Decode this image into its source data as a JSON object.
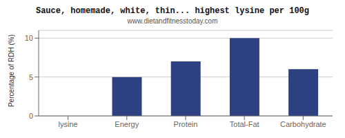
{
  "chart_data": {
    "type": "bar",
    "title": "Sauce, homemade, white, thin... highest lysine per 100g",
    "subtitle": "www.dietandfitnesstoday.com",
    "ylabel": "Percentage of RDH (%)",
    "categories": [
      "lysine",
      "Energy",
      "Protein",
      "Total-Fat",
      "Carbohydrate"
    ],
    "values": [
      0,
      5,
      7,
      10,
      6
    ],
    "color": "#2d4080",
    "ylim": [
      0,
      11
    ],
    "yticks": [
      0,
      5,
      10
    ],
    "grid": true
  }
}
